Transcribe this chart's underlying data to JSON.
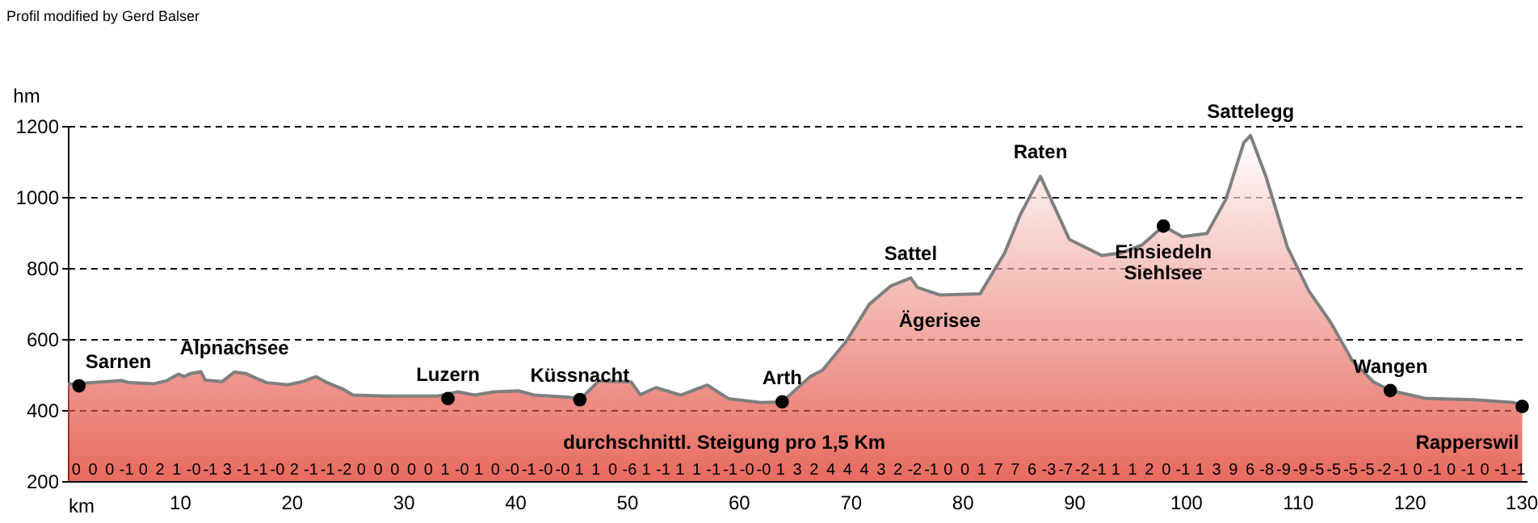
{
  "chart_data": {
    "type": "area",
    "title": "Profil modified by Gerd Balser",
    "xlabel": "km",
    "ylabel": "hm",
    "xlim": [
      0,
      130.5
    ],
    "xticks": [
      10,
      20,
      30,
      40,
      50,
      60,
      70,
      80,
      90,
      100,
      110,
      120,
      130
    ],
    "ylim": [
      200,
      1200
    ],
    "yticks": [
      200,
      400,
      600,
      800,
      1000,
      1200
    ],
    "grid": "y",
    "series": [
      {
        "color": "#dd2a1a",
        "x": [
          0,
          4.8,
          5.5,
          7.7,
          8.8,
          9.9,
          10.4,
          11.0,
          11.9,
          12.3,
          13.8,
          14.9,
          15.9,
          16.8,
          17.8,
          19.7,
          21.0,
          22.2,
          23.2,
          24.6,
          25.5,
          28.7,
          33.0,
          34.9,
          36.4,
          38.1,
          40.3,
          41.7,
          44.9,
          45.8,
          47.5,
          50.4,
          51.2,
          52.6,
          54.8,
          57.2,
          59.1,
          62.0,
          63.9,
          66.4,
          67.5,
          69.6,
          71.7,
          73.6,
          75.4,
          76.0,
          78.0,
          81.6,
          83.8,
          85.2,
          87.0,
          89.6,
          92.5,
          94.2,
          96.1,
          98.0,
          99.7,
          101.9,
          103.6,
          105.2,
          105.8,
          107.2,
          109.1,
          111.0,
          113.0,
          114.9,
          116.8,
          118.3,
          121.4,
          125.8,
          129.4,
          130.1
        ],
        "values": [
          473,
          483,
          477,
          474,
          482,
          501,
          494,
          503,
          508,
          484,
          480,
          507,
          503,
          490,
          477,
          471,
          480,
          494,
          477,
          459,
          442,
          439,
          439,
          451,
          442,
          451,
          454,
          442,
          436,
          429,
          482,
          479,
          443,
          463,
          442,
          470,
          432,
          421,
          423,
          494,
          512,
          592,
          698,
          749,
          772,
          745,
          724,
          727,
          842,
          950,
          1058,
          880,
          835,
          842,
          865,
          918,
          888,
          897,
          994,
          1153,
          1173,
          1055,
          858,
          736,
          645,
          539,
          479,
          455,
          433,
          429,
          421,
          410
        ]
      },
      {
        "type": "scatter",
        "marker": "circle",
        "color": "#000000",
        "x": [
          1.0,
          34.0,
          45.8,
          63.9,
          98.0,
          118.3,
          130.1
        ],
        "values": [
          468,
          432,
          429,
          423,
          918,
          455,
          410
        ]
      }
    ],
    "annotations": [
      {
        "text": "Sarnen",
        "x": 1.0,
        "y": 468
      },
      {
        "text": "Alpnachsee",
        "x": 14.9,
        "y": 507
      },
      {
        "text": "Luzern",
        "x": 34.0,
        "y": 432
      },
      {
        "text": "Küssnacht",
        "x": 45.8,
        "y": 429
      },
      {
        "text": "Arth",
        "x": 63.9,
        "y": 423
      },
      {
        "text": "Sattel",
        "x": 75.4,
        "y": 772
      },
      {
        "text": "Ägerisee",
        "x": 78.0,
        "y": 724
      },
      {
        "text": "Raten",
        "x": 87.0,
        "y": 1058
      },
      {
        "text": "Sattelegg",
        "x": 105.8,
        "y": 1173
      },
      {
        "text": "Einsiedeln",
        "x": 98.0,
        "y": 918
      },
      {
        "text": "Siehlsee",
        "x": 98.0,
        "y": 918
      },
      {
        "text": "Wangen",
        "x": 118.3,
        "y": 455
      },
      {
        "text": "Rapperswil",
        "x": 130.1,
        "y": 410
      },
      "durchschnittl. Steigung pro 1,5 Km",
      {
        "text": "0",
        "x": 0.75,
        "y": 200
      },
      {
        "text": "0",
        "x": 2.25,
        "y": 200
      },
      {
        "text": "0",
        "x": 3.75,
        "y": 200
      },
      {
        "text": "-1",
        "x": 5.25,
        "y": 200
      },
      {
        "text": "0",
        "x": 6.75,
        "y": 200
      },
      {
        "text": "2",
        "x": 8.25,
        "y": 200
      },
      {
        "text": "1",
        "x": 9.75,
        "y": 200
      },
      {
        "text": "-0",
        "x": 11.25,
        "y": 200
      },
      {
        "text": "-1",
        "x": 12.75,
        "y": 200
      },
      {
        "text": "3",
        "x": 14.25,
        "y": 200
      },
      {
        "text": "-1",
        "x": 15.75,
        "y": 200
      },
      {
        "text": "-1",
        "x": 17.25,
        "y": 200
      },
      {
        "text": "-0",
        "x": 18.75,
        "y": 200
      },
      {
        "text": "2",
        "x": 20.25,
        "y": 200
      },
      {
        "text": "-1",
        "x": 21.75,
        "y": 200
      },
      {
        "text": "-1",
        "x": 23.25,
        "y": 200
      },
      {
        "text": "-2",
        "x": 24.75,
        "y": 200
      },
      {
        "text": "0",
        "x": 26.25,
        "y": 200
      },
      {
        "text": "0",
        "x": 27.75,
        "y": 200
      },
      {
        "text": "0",
        "x": 29.25,
        "y": 200
      },
      {
        "text": "0",
        "x": 30.75,
        "y": 200
      },
      {
        "text": "0",
        "x": 32.25,
        "y": 200
      },
      {
        "text": "1",
        "x": 33.75,
        "y": 200
      },
      {
        "text": "-0",
        "x": 35.25,
        "y": 200
      },
      {
        "text": "1",
        "x": 36.75,
        "y": 200
      },
      {
        "text": "0",
        "x": 38.25,
        "y": 200
      },
      {
        "text": "-0",
        "x": 39.75,
        "y": 200
      },
      {
        "text": "-1",
        "x": 41.25,
        "y": 200
      },
      {
        "text": "-0",
        "x": 42.75,
        "y": 200
      },
      {
        "text": "-0",
        "x": 44.25,
        "y": 200
      },
      {
        "text": "1",
        "x": 45.75,
        "y": 200
      },
      {
        "text": "1",
        "x": 47.25,
        "y": 200
      },
      {
        "text": "0",
        "x": 48.75,
        "y": 200
      },
      {
        "text": "-6",
        "x": 50.25,
        "y": 200
      },
      {
        "text": "1",
        "x": 51.75,
        "y": 200
      },
      {
        "text": "-1",
        "x": 53.25,
        "y": 200
      },
      {
        "text": "1",
        "x": 54.75,
        "y": 200
      },
      {
        "text": "1",
        "x": 56.25,
        "y": 200
      },
      {
        "text": "-1",
        "x": 57.75,
        "y": 200
      },
      {
        "text": "-1",
        "x": 59.25,
        "y": 200
      },
      {
        "text": "-0",
        "x": 60.75,
        "y": 200
      },
      {
        "text": "-0",
        "x": 62.25,
        "y": 200
      },
      {
        "text": "1",
        "x": 63.75,
        "y": 200
      },
      {
        "text": "3",
        "x": 65.25,
        "y": 200
      },
      {
        "text": "2",
        "x": 66.75,
        "y": 200
      },
      {
        "text": "4",
        "x": 68.25,
        "y": 200
      },
      {
        "text": "4",
        "x": 69.75,
        "y": 200
      },
      {
        "text": "4",
        "x": 71.25,
        "y": 200
      },
      {
        "text": "3",
        "x": 72.75,
        "y": 200
      },
      {
        "text": "2",
        "x": 74.25,
        "y": 200
      },
      {
        "text": "-2",
        "x": 75.75,
        "y": 200
      },
      {
        "text": "-1",
        "x": 77.25,
        "y": 200
      },
      {
        "text": "0",
        "x": 78.75,
        "y": 200
      },
      {
        "text": "0",
        "x": 80.25,
        "y": 200
      },
      {
        "text": "1",
        "x": 81.75,
        "y": 200
      },
      {
        "text": "7",
        "x": 83.25,
        "y": 200
      },
      {
        "text": "7",
        "x": 84.75,
        "y": 200
      },
      {
        "text": "6",
        "x": 86.25,
        "y": 200
      },
      {
        "text": "-3",
        "x": 87.75,
        "y": 200
      },
      {
        "text": "-7",
        "x": 89.25,
        "y": 200
      },
      {
        "text": "-2",
        "x": 90.75,
        "y": 200
      },
      {
        "text": "-1",
        "x": 92.25,
        "y": 200
      },
      {
        "text": "1",
        "x": 93.75,
        "y": 200
      },
      {
        "text": "1",
        "x": 95.25,
        "y": 200
      },
      {
        "text": "2",
        "x": 96.75,
        "y": 200
      },
      {
        "text": "0",
        "x": 98.25,
        "y": 200
      },
      {
        "text": "-1",
        "x": 99.75,
        "y": 200
      },
      {
        "text": "1",
        "x": 101.25,
        "y": 200
      },
      {
        "text": "3",
        "x": 102.75,
        "y": 200
      },
      {
        "text": "9",
        "x": 104.25,
        "y": 200
      },
      {
        "text": "6",
        "x": 105.75,
        "y": 200
      },
      {
        "text": "-8",
        "x": 107.25,
        "y": 200
      },
      {
        "text": "-9",
        "x": 108.75,
        "y": 200
      },
      {
        "text": "-9",
        "x": 110.25,
        "y": 200
      },
      {
        "text": "-5",
        "x": 111.75,
        "y": 200
      },
      {
        "text": "-5",
        "x": 113.25,
        "y": 200
      },
      {
        "text": "-5",
        "x": 114.75,
        "y": 200
      },
      {
        "text": "-5",
        "x": 116.25,
        "y": 200
      },
      {
        "text": "-2",
        "x": 117.75,
        "y": 200
      },
      {
        "text": "-1",
        "x": 119.25,
        "y": 200
      },
      {
        "text": "0",
        "x": 120.75,
        "y": 200
      },
      {
        "text": "-1",
        "x": 122.25,
        "y": 200
      },
      {
        "text": "0",
        "x": 123.75,
        "y": 200
      },
      {
        "text": "-1",
        "x": 125.25,
        "y": 200
      },
      {
        "text": "0",
        "x": 126.75,
        "y": 200
      },
      {
        "text": "-1",
        "x": 128.25,
        "y": 200
      },
      {
        "text": "-1",
        "x": 129.75,
        "y": 200
      }
    ]
  }
}
